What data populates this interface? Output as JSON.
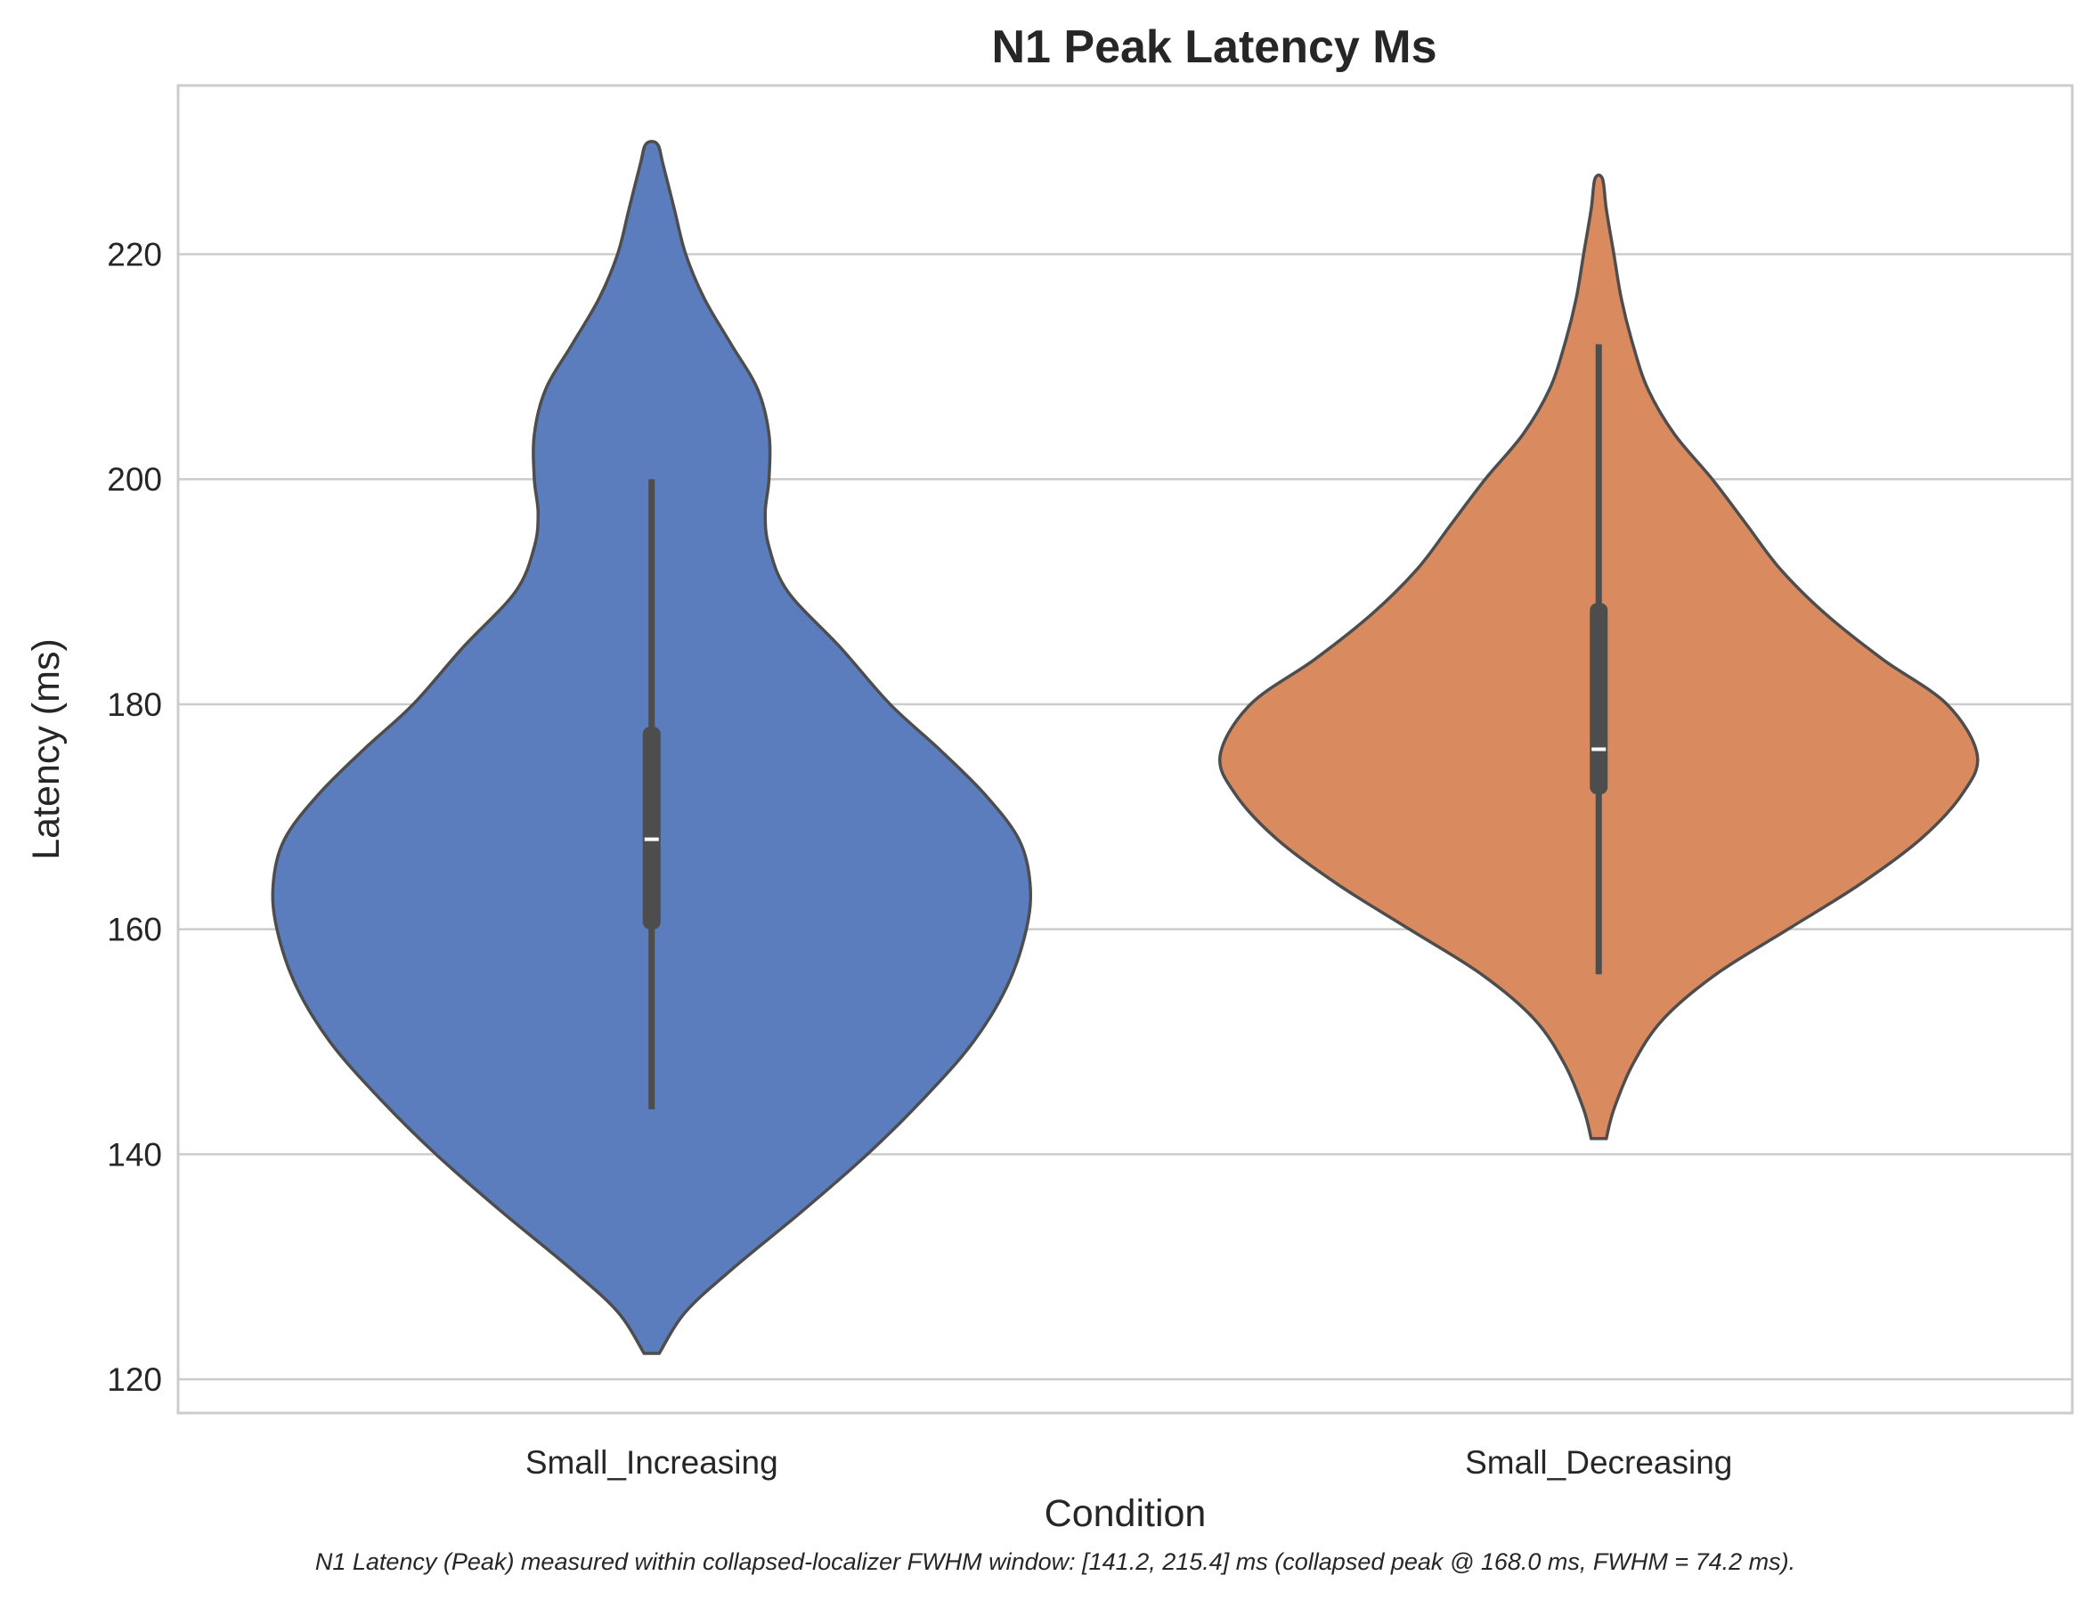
{
  "chart_data": {
    "type": "violin",
    "title": "N1 Peak Latency Ms",
    "xlabel": "Condition",
    "ylabel": "Latency (ms)",
    "ylim": [
      117,
      235
    ],
    "yticks": [
      120,
      140,
      160,
      180,
      200,
      220
    ],
    "grid": "horizontal",
    "caption": "N1 Latency (Peak) measured within collapsed-localizer FWHM window: [141.2, 215.4] ms (collapsed peak @ 168.0 ms, FWHM = 74.2 ms).",
    "categories": [
      "Small_Increasing",
      "Small_Decreasing"
    ],
    "colors": [
      "#5b7dbd",
      "#d98a5f"
    ],
    "edge_color": "#4d4d4d",
    "violins": [
      {
        "name": "Small_Increasing",
        "min_extent": 122.3,
        "max_extent": 229.8,
        "whisker_low": 144,
        "q1": 160,
        "median": 168,
        "q3": 178,
        "whisker_high": 200,
        "density": [
          [
            122.3,
            0.02
          ],
          [
            126,
            0.09
          ],
          [
            130,
            0.22
          ],
          [
            135,
            0.4
          ],
          [
            140,
            0.57
          ],
          [
            145,
            0.72
          ],
          [
            150,
            0.85
          ],
          [
            155,
            0.94
          ],
          [
            160,
            0.99
          ],
          [
            164,
            1.0
          ],
          [
            168,
            0.97
          ],
          [
            172,
            0.88
          ],
          [
            176,
            0.76
          ],
          [
            180,
            0.63
          ],
          [
            185,
            0.5
          ],
          [
            190,
            0.36
          ],
          [
            194,
            0.31
          ],
          [
            197,
            0.3
          ],
          [
            200,
            0.31
          ],
          [
            204,
            0.31
          ],
          [
            208,
            0.28
          ],
          [
            212,
            0.21
          ],
          [
            216,
            0.14
          ],
          [
            220,
            0.09
          ],
          [
            224,
            0.06
          ],
          [
            228,
            0.03
          ],
          [
            229.8,
            0.015
          ]
        ]
      },
      {
        "name": "Small_Decreasing",
        "min_extent": 141.4,
        "max_extent": 226.7,
        "whisker_low": 156,
        "q1": 172,
        "median": 176,
        "q3": 189,
        "whisker_high": 212,
        "density": [
          [
            141.4,
            0.02
          ],
          [
            144,
            0.04
          ],
          [
            148,
            0.09
          ],
          [
            152,
            0.17
          ],
          [
            156,
            0.31
          ],
          [
            160,
            0.5
          ],
          [
            164,
            0.69
          ],
          [
            168,
            0.85
          ],
          [
            172,
            0.96
          ],
          [
            175.5,
            1.0
          ],
          [
            180,
            0.92
          ],
          [
            184,
            0.75
          ],
          [
            188,
            0.6
          ],
          [
            192,
            0.48
          ],
          [
            196,
            0.39
          ],
          [
            200,
            0.3
          ],
          [
            204,
            0.2
          ],
          [
            208,
            0.13
          ],
          [
            212,
            0.09
          ],
          [
            216,
            0.06
          ],
          [
            220,
            0.04
          ],
          [
            224,
            0.02
          ],
          [
            226.7,
            0.01
          ]
        ]
      }
    ]
  }
}
